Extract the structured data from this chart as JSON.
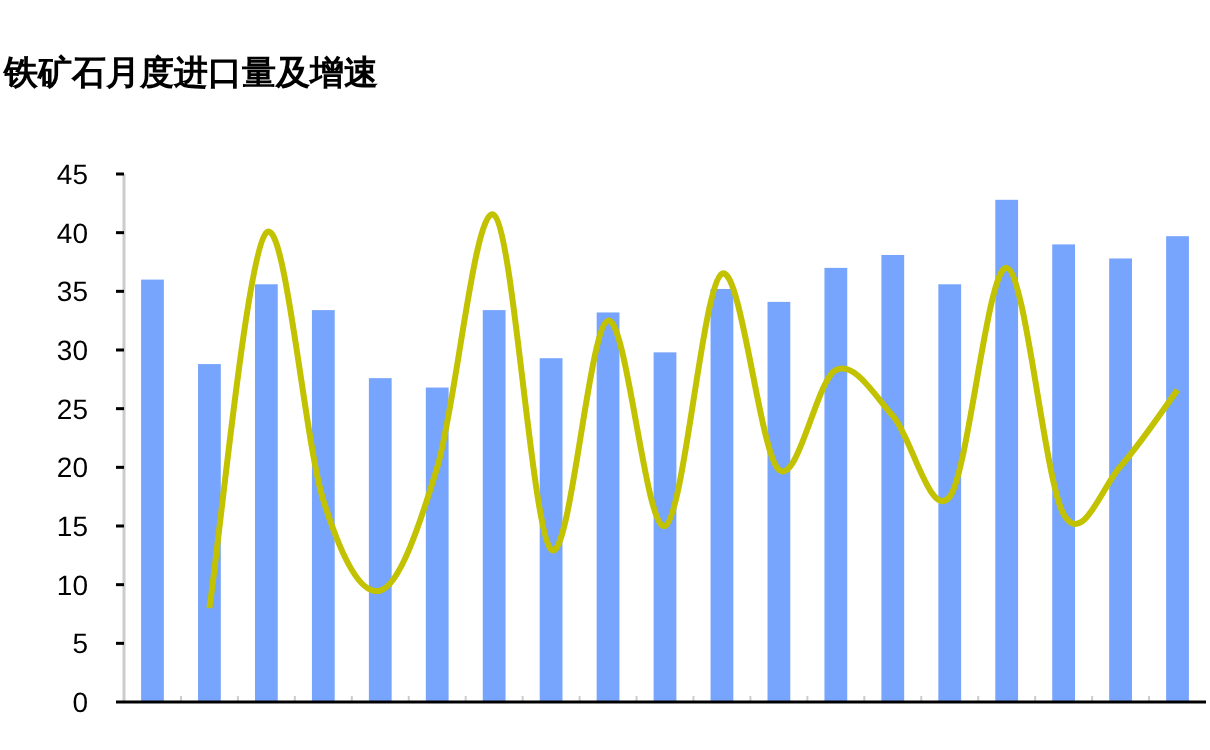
{
  "chart_data": {
    "type": "bar",
    "title": "铁矿石月度进口量及增速",
    "categories": [
      null,
      null,
      null,
      null,
      null,
      null,
      null,
      null,
      null,
      null,
      null,
      null,
      null,
      null,
      null,
      null,
      null,
      null,
      null
    ],
    "series": [
      {
        "color": "#77a4fd",
        "values": [
          36,
          28.8,
          35.6,
          33.4,
          27.6,
          26.8,
          33.4,
          29.3,
          33.2,
          29.8,
          35.2,
          34.1,
          37,
          38.1,
          35.6,
          42.8,
          39,
          37.8,
          39.7
        ]
      },
      {
        "type": "line",
        "color": "#c2c200",
        "values": [
          null,
          8,
          40,
          17.2,
          9.5,
          20,
          41.5,
          13,
          32.5,
          15,
          36.5,
          19.8,
          28.3,
          24.4,
          17.5,
          37,
          16,
          20.1,
          26.6
        ]
      }
    ],
    "ylim": [
      0,
      45
    ],
    "yticks": [
      0,
      5,
      10,
      15,
      20,
      25,
      30,
      35,
      40,
      45
    ],
    "grid": false
  }
}
